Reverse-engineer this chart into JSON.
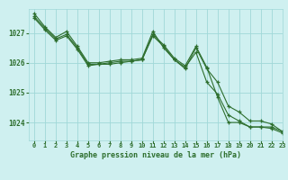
{
  "title": "Graphe pression niveau de la mer (hPa)",
  "background_color": "#cff0f0",
  "grid_color": "#a0d8d8",
  "line_color": "#2d6e2d",
  "xlim": [
    -0.5,
    23
  ],
  "ylim": [
    1023.4,
    1027.8
  ],
  "yticks": [
    1024,
    1025,
    1026,
    1027
  ],
  "xticks": [
    0,
    1,
    2,
    3,
    4,
    5,
    6,
    7,
    8,
    9,
    10,
    11,
    12,
    13,
    14,
    15,
    16,
    17,
    18,
    19,
    20,
    21,
    22,
    23
  ],
  "series": [
    [
      1027.65,
      1027.2,
      1026.85,
      1027.05,
      1026.55,
      1026.0,
      1026.0,
      1026.05,
      1026.1,
      1026.1,
      1026.15,
      1027.05,
      1026.5,
      1026.1,
      1025.85,
      1026.35,
      1025.35,
      1024.95,
      1024.25,
      1024.05,
      1023.85,
      1023.85,
      1023.8,
      1023.65
    ],
    [
      1027.55,
      1027.15,
      1026.8,
      1026.95,
      1026.5,
      1025.95,
      1025.95,
      1026.0,
      1026.05,
      1026.05,
      1026.1,
      1026.95,
      1026.6,
      1026.15,
      1025.9,
      1026.55,
      1025.85,
      1024.85,
      1024.0,
      1024.0,
      1023.85,
      1023.85,
      1023.85,
      1023.7
    ],
    [
      1027.5,
      1027.1,
      1026.75,
      1026.9,
      1026.45,
      1025.9,
      1025.95,
      1025.95,
      1026.0,
      1026.05,
      1026.1,
      1026.9,
      1026.55,
      1026.1,
      1025.8,
      1026.5,
      1025.8,
      1025.35,
      1024.55,
      1024.35,
      1024.05,
      1024.05,
      1023.95,
      1023.7
    ]
  ]
}
